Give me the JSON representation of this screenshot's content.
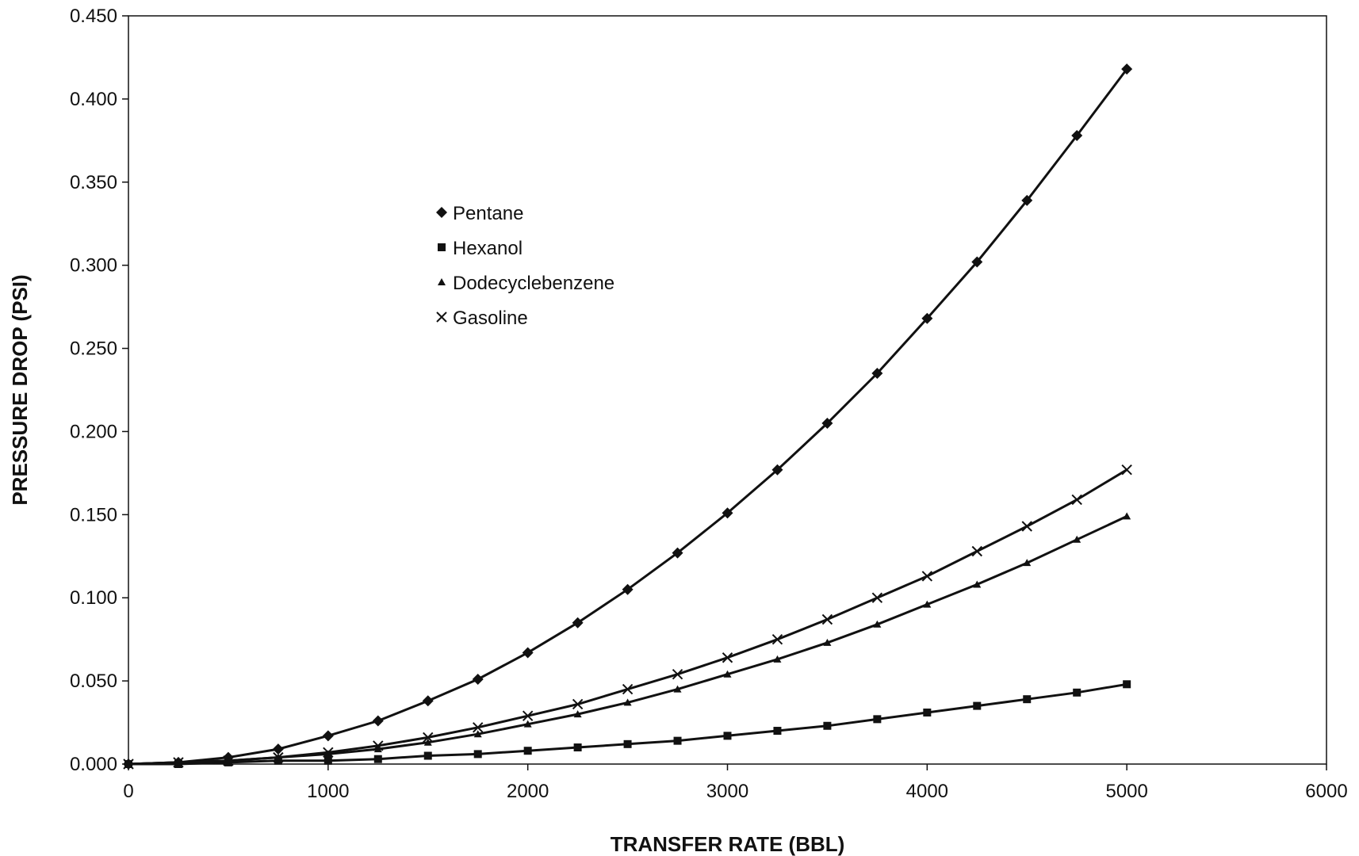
{
  "chart_data": {
    "type": "line",
    "xlabel": "TRANSFER RATE (BBL)",
    "ylabel": "PRESSURE DROP (PSI)",
    "xlim": [
      0,
      6000
    ],
    "ylim": [
      0,
      0.45
    ],
    "x_ticks": [
      "0",
      "1000",
      "2000",
      "3000",
      "4000",
      "5000",
      "6000"
    ],
    "y_ticks": [
      "0.000",
      "0.050",
      "0.100",
      "0.150",
      "0.200",
      "0.250",
      "0.300",
      "0.350",
      "0.400",
      "0.450"
    ],
    "grid": false,
    "legend_position": "upper-center-left",
    "x": [
      0,
      250,
      500,
      750,
      1000,
      1250,
      1500,
      1750,
      2000,
      2250,
      2500,
      2750,
      3000,
      3250,
      3500,
      3750,
      4000,
      4250,
      4500,
      4750,
      5000
    ],
    "series": [
      {
        "name": "Pentane",
        "marker": "diamond",
        "values": [
          0.0,
          0.001,
          0.004,
          0.009,
          0.017,
          0.026,
          0.038,
          0.051,
          0.067,
          0.085,
          0.105,
          0.127,
          0.151,
          0.177,
          0.205,
          0.235,
          0.268,
          0.302,
          0.339,
          0.378,
          0.418
        ]
      },
      {
        "name": "Hexanol",
        "marker": "square",
        "values": [
          0.0,
          0.0,
          0.001,
          0.002,
          0.002,
          0.003,
          0.005,
          0.006,
          0.008,
          0.01,
          0.012,
          0.014,
          0.017,
          0.02,
          0.023,
          0.027,
          0.031,
          0.035,
          0.039,
          0.043,
          0.048
        ]
      },
      {
        "name": "Dodecyclebenzene",
        "marker": "triangle",
        "values": [
          0.0,
          0.001,
          0.002,
          0.004,
          0.006,
          0.009,
          0.013,
          0.018,
          0.024,
          0.03,
          0.037,
          0.045,
          0.054,
          0.063,
          0.073,
          0.084,
          0.096,
          0.108,
          0.121,
          0.135,
          0.149
        ]
      },
      {
        "name": "Gasoline",
        "marker": "x",
        "values": [
          0.0,
          0.001,
          0.002,
          0.004,
          0.007,
          0.011,
          0.016,
          0.022,
          0.029,
          0.036,
          0.045,
          0.054,
          0.064,
          0.075,
          0.087,
          0.1,
          0.113,
          0.128,
          0.143,
          0.159,
          0.177
        ]
      }
    ]
  }
}
